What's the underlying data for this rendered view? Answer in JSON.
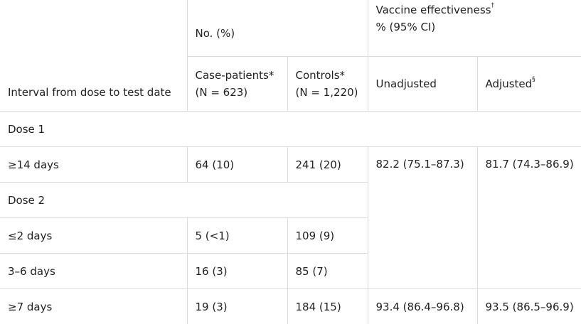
{
  "table": {
    "header": {
      "interval_label": "Interval from dose to test date",
      "no_pct_label": "No. (%)",
      "ve_label": "Vaccine effectiveness",
      "ve_sup": "†",
      "ve_ci_label": "% (95% CI)",
      "case_label": "Case-patients*",
      "case_n": "(N = 623)",
      "controls_label": "Controls*",
      "controls_n": "(N = 1,220)",
      "unadjusted_label": "Unadjusted",
      "adjusted_label": "Adjusted",
      "adjusted_sup": "§"
    },
    "dose1": {
      "label": "Dose 1",
      "rows": [
        {
          "interval": "≥14 days",
          "cases": "64 (10)",
          "controls": "241 (20)",
          "unadjusted": "82.2 (75.1–87.3)",
          "adjusted": "81.7 (74.3–86.9)"
        }
      ]
    },
    "dose2": {
      "label": "Dose 2",
      "rows": [
        {
          "interval": "≤2 days",
          "cases": "5 (<1)",
          "controls": "109 (9)"
        },
        {
          "interval": "3–6 days",
          "cases": "16 (3)",
          "controls": "85 (7)"
        },
        {
          "interval": "≥7 days",
          "cases": "19 (3)",
          "controls": "184 (15)",
          "unadjusted": "93.4 (86.4–96.8)",
          "adjusted": "93.5 (86.5–96.9)"
        }
      ]
    }
  }
}
